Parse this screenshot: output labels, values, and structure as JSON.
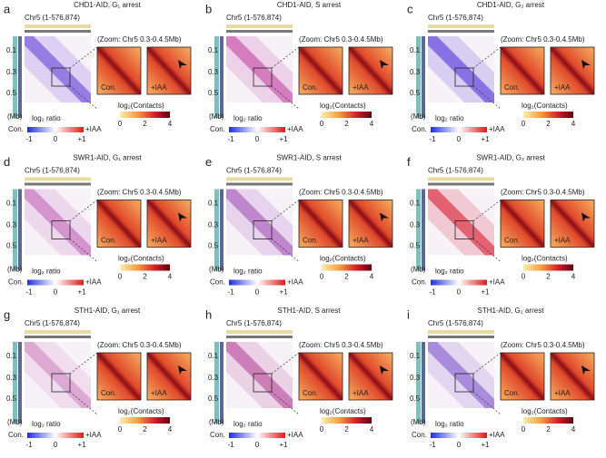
{
  "panels": [
    {
      "letter": "a",
      "title": "CHD1-AID, G₁ arrest",
      "chromosome": "Chr5 (1-576,874)",
      "zoom": "(Zoom: Chr5 0.3-0.4.5Mb)",
      "yticks": [
        "0.1",
        "0.3",
        "0.5"
      ],
      "unit": "(Mb)",
      "control": "Con.",
      "treated": "+IAA",
      "ratio_label": "log₂ ratio",
      "ratio_ticks": [
        "-1",
        "0",
        "+1"
      ],
      "contacts_label": "log₂(Contacts)",
      "contacts_ticks": [
        "0",
        "2",
        "4"
      ],
      "map_color": "#8b6fe0"
    },
    {
      "letter": "b",
      "title": "CHD1-AID, S arrest",
      "chromosome": "Chr5 (1-576,874)",
      "zoom": "(Zoom: Chr5 0.3-0.4.5Mb)",
      "yticks": [
        "0.1",
        "0.3",
        "0.5"
      ],
      "unit": "(Mb)",
      "control": "Con.",
      "treated": "+IAA",
      "ratio_label": "log₂ ratio",
      "ratio_ticks": [
        "-1",
        "0",
        "+1"
      ],
      "contacts_label": "log₂(Contacts)",
      "contacts_ticks": [
        "0",
        "2",
        "4"
      ],
      "map_color": "#d070b8"
    },
    {
      "letter": "c",
      "title": "CHD1-AID, G₂ arrest",
      "chromosome": "Chr5 (1-576,874)",
      "zoom": "(Zoom: Chr5 0.3-0.4.5Mb)",
      "yticks": [
        "0.1",
        "0.3",
        "0.5"
      ],
      "unit": "(Mb)",
      "control": "Con.",
      "treated": "+IAA",
      "ratio_label": "log₂ ratio",
      "ratio_ticks": [
        "-1",
        "0",
        "+1"
      ],
      "contacts_label": "log₂(Contacts)",
      "contacts_ticks": [
        "0",
        "2",
        "4"
      ],
      "map_color": "#7a62e0"
    },
    {
      "letter": "d",
      "title": "SWR1-AID, G₁ arrest",
      "chromosome": "Chr5 (1-576,874)",
      "zoom": "(Zoom: Chr5 0.3-0.4.5Mb)",
      "yticks": [
        "0.1",
        "0.3",
        "0.5"
      ],
      "unit": "(Mb)",
      "control": "Con.",
      "treated": "+IAA",
      "ratio_label": "log₂ ratio",
      "ratio_ticks": [
        "-1",
        "0",
        "+1"
      ],
      "contacts_label": "log₂(Contacts)",
      "contacts_ticks": [
        "0",
        "2",
        "4"
      ],
      "map_color": "#d088c8"
    },
    {
      "letter": "e",
      "title": "SWR1-AID, S arrest",
      "chromosome": "Chr5 (1-576,874)",
      "zoom": "(Zoom: Chr5 0.3-0.4.5Mb)",
      "yticks": [
        "0.1",
        "0.3",
        "0.5"
      ],
      "unit": "(Mb)",
      "control": "Con.",
      "treated": "+IAA",
      "ratio_label": "log₂ ratio",
      "ratio_ticks": [
        "-1",
        "0",
        "+1"
      ],
      "contacts_label": "log₂(Contacts)",
      "contacts_ticks": [
        "0",
        "2",
        "4"
      ],
      "map_color": "#b878c8"
    },
    {
      "letter": "f",
      "title": "SWR1-AID, G₂ arrest",
      "chromosome": "Chr5 (1-576,874)",
      "zoom": "(Zoom: Chr5 0.3-0.4.5Mb)",
      "yticks": [
        "0.1",
        "0.3",
        "0.5"
      ],
      "unit": "(Mb)",
      "control": "Con.",
      "treated": "+IAA",
      "ratio_label": "log₂ ratio",
      "ratio_ticks": [
        "-1",
        "0",
        "+1"
      ],
      "contacts_label": "log₂(Contacts)",
      "contacts_ticks": [
        "0",
        "2",
        "4"
      ],
      "map_color": "#e05060"
    },
    {
      "letter": "g",
      "title": "STH1-AID, G₁ arrest",
      "chromosome": "Chr5 (1-576,874)",
      "zoom": "(Zoom: Chr5 0.3-0.4.5Mb)",
      "yticks": [
        "0.1",
        "0.3",
        "0.5"
      ],
      "unit": "(Mb)",
      "control": "Con.",
      "treated": "+IAA",
      "ratio_label": "log₂ ratio",
      "ratio_ticks": [
        "-1",
        "0",
        "+1"
      ],
      "contacts_label": "log₂(Contacts)",
      "contacts_ticks": [
        "0",
        "2",
        "4"
      ],
      "map_color": "#d8a0d0"
    },
    {
      "letter": "h",
      "title": "STH1-AID, S arrest",
      "chromosome": "Chr5 (1-576,874)",
      "zoom": "(Zoom: Chr5 0.3-0.4.5Mb)",
      "yticks": [
        "0.1",
        "0.3",
        "0.5"
      ],
      "unit": "(Mb)",
      "control": "Con.",
      "treated": "+IAA",
      "ratio_label": "log₂ ratio",
      "ratio_ticks": [
        "-1",
        "0",
        "+1"
      ],
      "contacts_label": "log₂(Contacts)",
      "contacts_ticks": [
        "0",
        "2",
        "4"
      ],
      "map_color": "#c870b0"
    },
    {
      "letter": "i",
      "title": "STH1-AID, G₂ arrest",
      "chromosome": "Chr5 (1-576,874)",
      "zoom": "(Zoom: Chr5 0.3-0.4.5Mb)",
      "yticks": [
        "0.1",
        "0.3",
        "0.5"
      ],
      "unit": "(Mb)",
      "control": "Con.",
      "treated": "+IAA",
      "ratio_label": "log₂ ratio",
      "ratio_ticks": [
        "-1",
        "0",
        "+1"
      ],
      "contacts_label": "log₂(Contacts)",
      "contacts_ticks": [
        "0",
        "2",
        "4"
      ],
      "map_color": "#a080d8"
    }
  ]
}
